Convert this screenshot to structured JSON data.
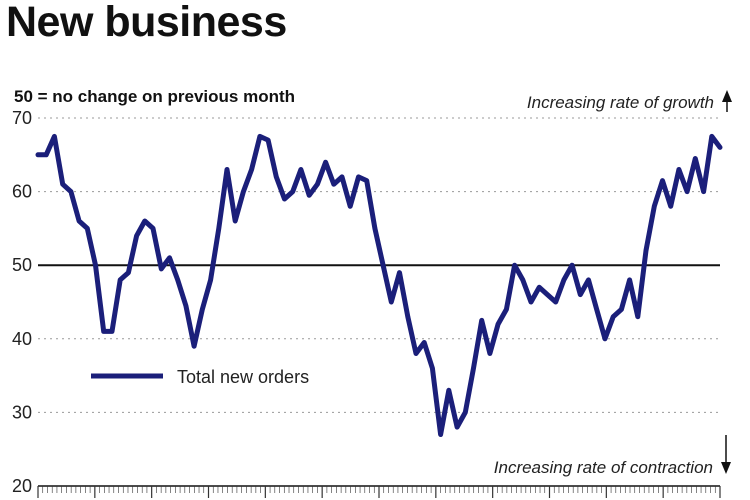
{
  "chart_data": {
    "type": "line",
    "title": "New business",
    "subtitle": "50 = no change on previous month",
    "ylim": [
      20,
      70
    ],
    "yticks": [
      20,
      30,
      40,
      50,
      60,
      70
    ],
    "reference_line": 50,
    "grid": "dotted horizontal",
    "legend_position": "lower-left",
    "annotations": {
      "top": "Increasing rate of growth",
      "bottom": "Increasing rate of contraction"
    },
    "series": [
      {
        "name": "Total new orders",
        "color": "#1b1f7a",
        "values": [
          65,
          65,
          67.5,
          61,
          60,
          56,
          55,
          50,
          41,
          41,
          48,
          49,
          54,
          56,
          55,
          49.5,
          51,
          48,
          44.5,
          39,
          44,
          48,
          55,
          63,
          56,
          60,
          63,
          67.5,
          67,
          62,
          59,
          60,
          63,
          59.5,
          61,
          64,
          61,
          62,
          58,
          62,
          61.5,
          55,
          50,
          45,
          49,
          43,
          38,
          39.5,
          36,
          27,
          33,
          28,
          30,
          36,
          42.5,
          38,
          42,
          44,
          50,
          48,
          45,
          47,
          46,
          45,
          48,
          50,
          46,
          48,
          44,
          40,
          43,
          44,
          48,
          43,
          52,
          58,
          61.5,
          58,
          63,
          60,
          64.5,
          60,
          67.5,
          66
        ]
      }
    ]
  },
  "legend": {
    "label": "Total new orders"
  },
  "colors": {
    "line": "#1b1f7a",
    "grid": "#9a9a9a",
    "reference": "#111111"
  }
}
